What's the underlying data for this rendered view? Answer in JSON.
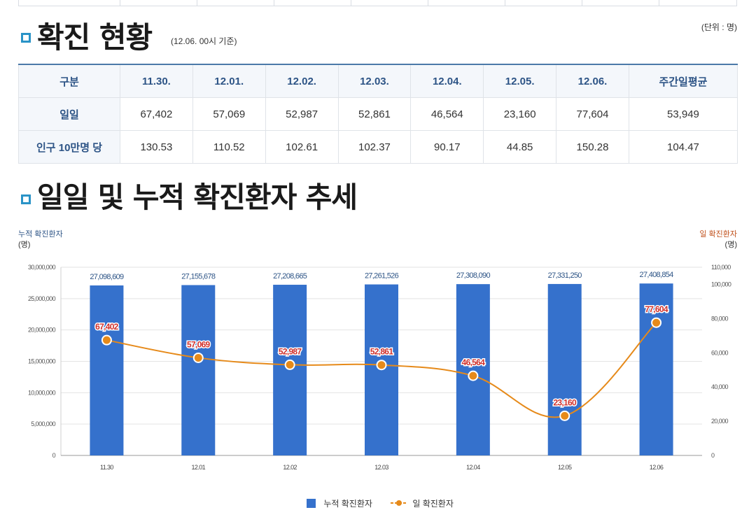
{
  "section1": {
    "title": "확진 현황",
    "subtitle": "(12.06. 00시 기준)",
    "unit": "(단위 : 명)"
  },
  "table": {
    "corner": "구분",
    "columns": [
      "11.30.",
      "12.01.",
      "12.02.",
      "12.03.",
      "12.04.",
      "12.05.",
      "12.06.",
      "주간일평균"
    ],
    "rows": [
      {
        "label": "일일",
        "values": [
          "67,402",
          "57,069",
          "52,987",
          "52,861",
          "46,564",
          "23,160",
          "77,604",
          "53,949"
        ]
      },
      {
        "label": "인구 10만명 당",
        "values": [
          "130.53",
          "110.52",
          "102.61",
          "102.37",
          "90.17",
          "44.85",
          "150.28",
          "104.47"
        ]
      }
    ]
  },
  "section2": {
    "title": "일일 및 누적 확진환자 추세"
  },
  "axis_labels": {
    "left_title": "누적 확진환자",
    "left_unit": "(명)",
    "right_title": "일 확진환자",
    "right_unit": "(명)"
  },
  "colors": {
    "bar": "#3571cc",
    "line": "#e68a1a",
    "line_label": "#d0302b",
    "bar_label": "#2d5486",
    "accent": "#2a93c7"
  },
  "chart_data": {
    "type": "bar+line",
    "categories": [
      "11.30",
      "12.01",
      "12.02",
      "12.03",
      "12.04",
      "12.05",
      "12.06"
    ],
    "series": [
      {
        "name": "누적 확진환자",
        "type": "bar",
        "axis": "left",
        "values": [
          27098609,
          27155678,
          27208665,
          27261526,
          27308090,
          27331250,
          27408854
        ],
        "labels": [
          "27,098,609",
          "27,155,678",
          "27,208,665",
          "27,261,526",
          "27,308,090",
          "27,331,250",
          "27,408,854"
        ]
      },
      {
        "name": "일 확진환자",
        "type": "line",
        "axis": "right",
        "values": [
          67402,
          57069,
          52987,
          52861,
          46564,
          23160,
          77604
        ],
        "labels": [
          "67,402",
          "57,069",
          "52,987",
          "52,861",
          "46,564",
          "23,160",
          "77,604"
        ]
      }
    ],
    "left_axis": {
      "min": 0,
      "max": 30000000,
      "ticks": [
        0,
        5000000,
        10000000,
        15000000,
        20000000,
        25000000,
        30000000
      ],
      "tick_labels": [
        "0",
        "5,000,000",
        "10,000,000",
        "15,000,000",
        "20,000,000",
        "25,000,000",
        "30,000,000"
      ]
    },
    "right_axis": {
      "min": 0,
      "max": 110000,
      "ticks": [
        0,
        20000,
        40000,
        60000,
        80000,
        100000,
        110000
      ],
      "tick_labels": [
        "0",
        "20,000",
        "40,000",
        "60,000",
        "80,000",
        "100,000",
        "110,000"
      ]
    },
    "legend": [
      "누적 확진환자",
      "일 확진환자"
    ],
    "legend_position": "bottom-center"
  }
}
